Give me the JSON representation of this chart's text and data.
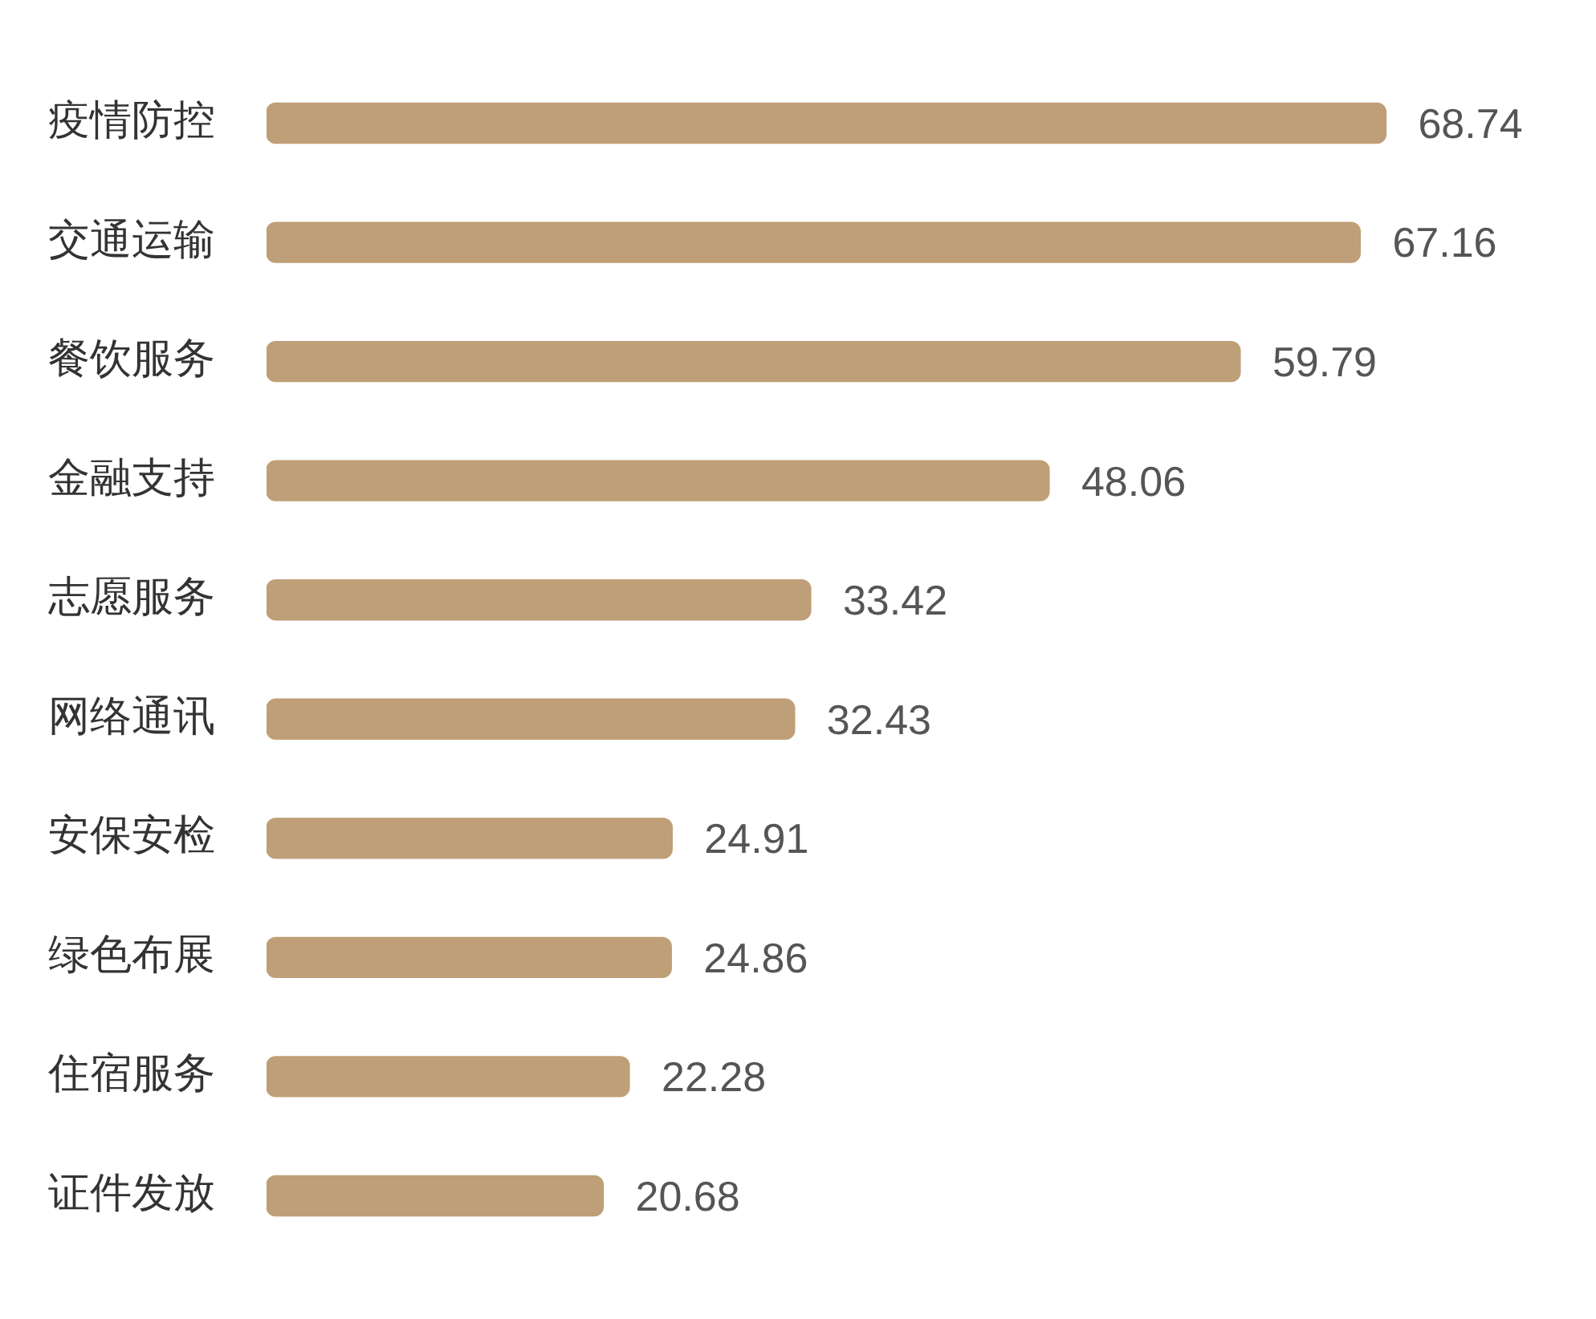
{
  "chart_data": {
    "type": "bar",
    "orientation": "horizontal",
    "categories": [
      "疫情防控",
      "交通运输",
      "餐饮服务",
      "金融支持",
      "志愿服务",
      "网络通讯",
      "安保安检",
      "绿色布展",
      "住宿服务",
      "证件发放"
    ],
    "values": [
      68.74,
      67.16,
      59.79,
      48.06,
      33.42,
      32.43,
      24.91,
      24.86,
      22.28,
      20.68
    ],
    "color": "#bf9f77",
    "data_labels": true,
    "legend": false,
    "tick_labels": "y"
  }
}
